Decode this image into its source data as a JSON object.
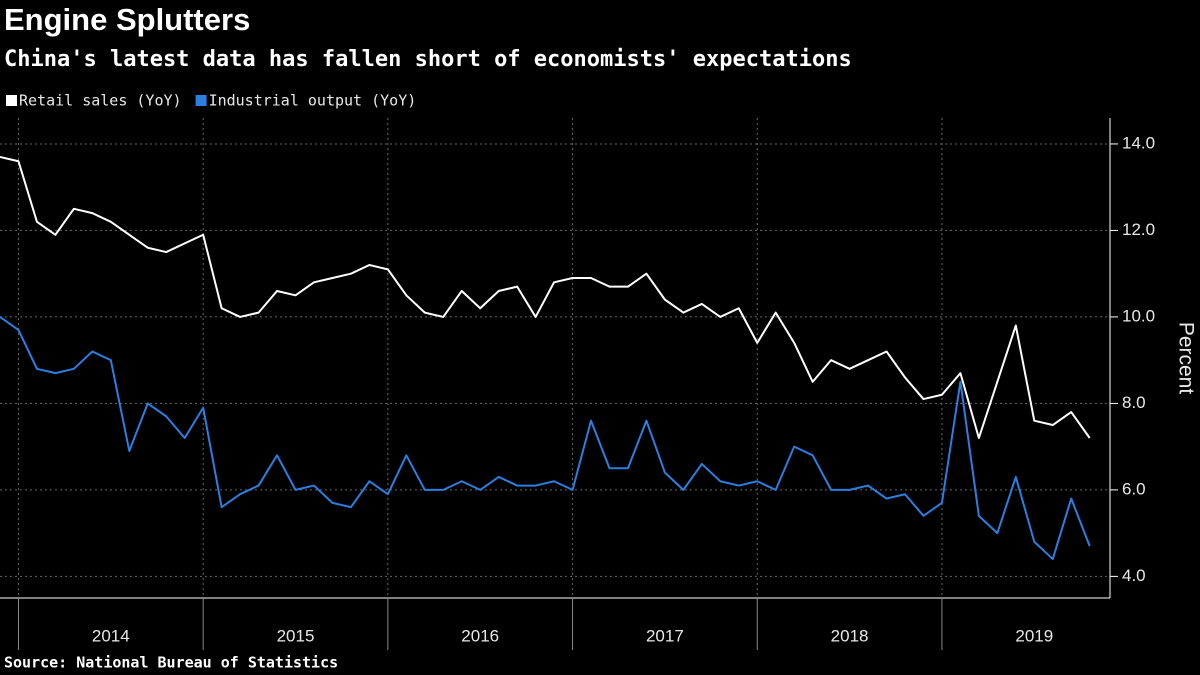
{
  "chart_data": {
    "type": "line",
    "title": "Engine Splutters",
    "subtitle": "China's latest data has fallen short of economists' expectations",
    "y_label": "Percent",
    "source": "Source: National Bureau of Statistics",
    "x": [
      2013.9,
      2014.0,
      2014.1,
      2014.2,
      2014.3,
      2014.4,
      2014.5,
      2014.6,
      2014.7,
      2014.8,
      2014.9,
      2015.0,
      2015.1,
      2015.2,
      2015.3,
      2015.4,
      2015.5,
      2015.6,
      2015.7,
      2015.8,
      2015.9,
      2016.0,
      2016.1,
      2016.2,
      2016.3,
      2016.4,
      2016.5,
      2016.6,
      2016.7,
      2016.8,
      2016.9,
      2017.0,
      2017.1,
      2017.2,
      2017.3,
      2017.4,
      2017.5,
      2017.6,
      2017.7,
      2017.8,
      2017.9,
      2018.0,
      2018.1,
      2018.2,
      2018.3,
      2018.4,
      2018.5,
      2018.6,
      2018.7,
      2018.8,
      2018.9,
      2019.0,
      2019.1,
      2019.2,
      2019.3,
      2019.4,
      2019.5,
      2019.6,
      2019.7,
      2019.8
    ],
    "series": [
      {
        "name": "Retail sales (YoY)",
        "color": "#ffffff",
        "values": [
          13.7,
          13.6,
          12.2,
          11.9,
          12.5,
          12.4,
          12.2,
          11.9,
          11.6,
          11.5,
          11.7,
          11.9,
          10.2,
          10.0,
          10.1,
          10.6,
          10.5,
          10.8,
          10.9,
          11.0,
          11.2,
          11.1,
          10.5,
          10.1,
          10.0,
          10.6,
          10.2,
          10.6,
          10.7,
          10.0,
          10.8,
          10.9,
          10.9,
          10.7,
          10.7,
          11.0,
          10.4,
          10.1,
          10.3,
          10.0,
          10.2,
          9.4,
          10.1,
          9.4,
          8.5,
          9.0,
          8.8,
          9.0,
          9.2,
          8.6,
          8.1,
          8.2,
          8.7,
          7.2,
          8.5,
          9.8,
          7.6,
          7.5,
          7.8,
          7.2
        ]
      },
      {
        "name": "Industrial output (YoY)",
        "color": "#2b7fe0",
        "values": [
          10.0,
          9.7,
          8.8,
          8.7,
          8.8,
          9.2,
          9.0,
          6.9,
          8.0,
          7.7,
          7.2,
          7.9,
          5.6,
          5.9,
          6.1,
          6.8,
          6.0,
          6.1,
          5.7,
          5.6,
          6.2,
          5.9,
          6.8,
          6.0,
          6.0,
          6.2,
          6.0,
          6.3,
          6.1,
          6.1,
          6.2,
          6.0,
          7.6,
          6.5,
          6.5,
          7.6,
          6.4,
          6.0,
          6.6,
          6.2,
          6.1,
          6.2,
          6.0,
          7.0,
          6.8,
          6.0,
          6.0,
          6.1,
          5.8,
          5.9,
          5.4,
          5.7,
          8.5,
          5.4,
          5.0,
          6.3,
          4.8,
          4.4,
          5.8,
          4.7
        ]
      }
    ],
    "xlim": [
      2013.9,
      2019.91
    ],
    "xticks": [
      {
        "value": 2014.5,
        "label": "2014"
      },
      {
        "value": 2015.5,
        "label": "2015"
      },
      {
        "value": 2016.5,
        "label": "2016"
      },
      {
        "value": 2017.5,
        "label": "2017"
      },
      {
        "value": 2018.5,
        "label": "2018"
      },
      {
        "value": 2019.5,
        "label": "2019"
      }
    ],
    "xgrid": [
      2014,
      2015,
      2016,
      2017,
      2018,
      2019
    ],
    "ylim": [
      3.5,
      14.6
    ],
    "yticks": [
      {
        "value": 4,
        "label": "4.0"
      },
      {
        "value": 6,
        "label": "6.0"
      },
      {
        "value": 8,
        "label": "8.0"
      },
      {
        "value": 10,
        "label": "10.0"
      },
      {
        "value": 12,
        "label": "12.0"
      },
      {
        "value": 14,
        "label": "14.0"
      }
    ],
    "grid": true,
    "legend": "top-left"
  }
}
